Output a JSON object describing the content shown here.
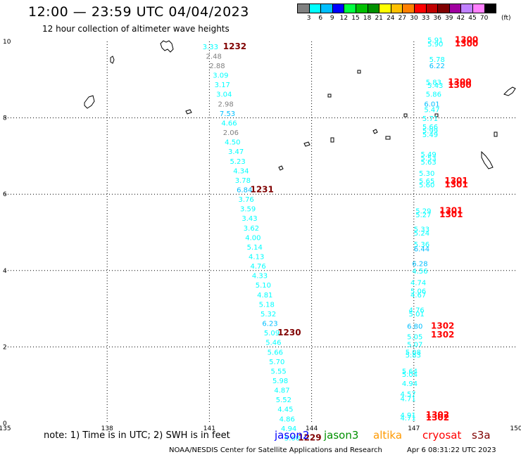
{
  "header": {
    "title": "12:00 — 23:59 UTC 04/04/2023",
    "subtitle": "12 hour collection of altimeter wave heights"
  },
  "colorbar": {
    "colors": [
      "#808080",
      "#00ffff",
      "#00bfff",
      "#0000ff",
      "#00ff40",
      "#00c000",
      "#009000",
      "#ffff00",
      "#ffc000",
      "#ff8000",
      "#ff0000",
      "#c00000",
      "#800000",
      "#a000a0",
      "#c080ff",
      "#ff80ff",
      "#000000"
    ],
    "labels": [
      "3",
      "6",
      "9",
      "12",
      "15",
      "18",
      "21",
      "24",
      "27",
      "30",
      "33",
      "36",
      "39",
      "42",
      "45",
      "70"
    ],
    "unit": "(ft)"
  },
  "axes": {
    "x_ticks": [
      "135",
      "138",
      "141",
      "144",
      "147",
      "150"
    ],
    "y_ticks": [
      "0",
      "2",
      "4",
      "6",
      "8",
      "10"
    ]
  },
  "tracks": {
    "left_labels": [
      {
        "text": "3.33",
        "lon": 140.8,
        "lat": 9.8,
        "color": "#00ffff"
      },
      {
        "text": "2.48",
        "lon": 140.9,
        "lat": 9.55,
        "color": "#808080"
      },
      {
        "text": "2.88",
        "lon": 141.0,
        "lat": 9.3,
        "color": "#808080"
      },
      {
        "text": "3.09",
        "lon": 141.1,
        "lat": 9.05,
        "color": "#00ffff"
      },
      {
        "text": "3.17",
        "lon": 141.15,
        "lat": 8.8,
        "color": "#00ffff"
      },
      {
        "text": "3.04",
        "lon": 141.2,
        "lat": 8.55,
        "color": "#00ffff"
      },
      {
        "text": "2.98",
        "lon": 141.25,
        "lat": 8.3,
        "color": "#808080"
      },
      {
        "text": "7.53",
        "lon": 141.3,
        "lat": 8.05,
        "color": "#00bfff"
      },
      {
        "text": "4.66",
        "lon": 141.35,
        "lat": 7.8,
        "color": "#00ffff"
      },
      {
        "text": "2.06",
        "lon": 141.4,
        "lat": 7.55,
        "color": "#808080"
      },
      {
        "text": "4.50",
        "lon": 141.45,
        "lat": 7.3,
        "color": "#00ffff"
      },
      {
        "text": "3.47",
        "lon": 141.55,
        "lat": 7.05,
        "color": "#00ffff"
      },
      {
        "text": "5.23",
        "lon": 141.6,
        "lat": 6.8,
        "color": "#00ffff"
      },
      {
        "text": "4.34",
        "lon": 141.7,
        "lat": 6.55,
        "color": "#00ffff"
      },
      {
        "text": "3.78",
        "lon": 141.75,
        "lat": 6.3,
        "color": "#00ffff"
      },
      {
        "text": "6.84",
        "lon": 141.8,
        "lat": 6.05,
        "color": "#00bfff"
      },
      {
        "text": "3.76",
        "lon": 141.85,
        "lat": 5.8,
        "color": "#00ffff"
      },
      {
        "text": "3.59",
        "lon": 141.9,
        "lat": 5.55,
        "color": "#00ffff"
      },
      {
        "text": "3.43",
        "lon": 141.95,
        "lat": 5.3,
        "color": "#00ffff"
      },
      {
        "text": "3.62",
        "lon": 142.0,
        "lat": 5.05,
        "color": "#00ffff"
      },
      {
        "text": "4.00",
        "lon": 142.05,
        "lat": 4.8,
        "color": "#00ffff"
      },
      {
        "text": "5.14",
        "lon": 142.1,
        "lat": 4.55,
        "color": "#00ffff"
      },
      {
        "text": "4.13",
        "lon": 142.15,
        "lat": 4.3,
        "color": "#00ffff"
      },
      {
        "text": "4.76",
        "lon": 142.2,
        "lat": 4.05,
        "color": "#00ffff"
      },
      {
        "text": "4.33",
        "lon": 142.25,
        "lat": 3.8,
        "color": "#00ffff"
      },
      {
        "text": "5.10",
        "lon": 142.35,
        "lat": 3.55,
        "color": "#00ffff"
      },
      {
        "text": "4.81",
        "lon": 142.4,
        "lat": 3.3,
        "color": "#00ffff"
      },
      {
        "text": "5.18",
        "lon": 142.45,
        "lat": 3.05,
        "color": "#00ffff"
      },
      {
        "text": "5.32",
        "lon": 142.5,
        "lat": 2.8,
        "color": "#00ffff"
      },
      {
        "text": "6.23",
        "lon": 142.55,
        "lat": 2.55,
        "color": "#00bfff"
      },
      {
        "text": "5.09",
        "lon": 142.6,
        "lat": 2.3,
        "color": "#00ffff"
      },
      {
        "text": "5.46",
        "lon": 142.65,
        "lat": 2.05,
        "color": "#00ffff"
      },
      {
        "text": "5.66",
        "lon": 142.7,
        "lat": 1.8,
        "color": "#00ffff"
      },
      {
        "text": "5.70",
        "lon": 142.75,
        "lat": 1.55,
        "color": "#00ffff"
      },
      {
        "text": "5.55",
        "lon": 142.8,
        "lat": 1.3,
        "color": "#00ffff"
      },
      {
        "text": "5.98",
        "lon": 142.85,
        "lat": 1.05,
        "color": "#00ffff"
      },
      {
        "text": "4.87",
        "lon": 142.9,
        "lat": 0.8,
        "color": "#00ffff"
      },
      {
        "text": "5.52",
        "lon": 142.95,
        "lat": 0.55,
        "color": "#00ffff"
      },
      {
        "text": "4.45",
        "lon": 143.0,
        "lat": 0.3,
        "color": "#00ffff"
      },
      {
        "text": "4.86",
        "lon": 143.05,
        "lat": 0.05,
        "color": "#00ffff"
      },
      {
        "text": "4.94",
        "lon": 143.1,
        "lat": -0.2,
        "color": "#00ffff"
      },
      {
        "text": "5.00",
        "lon": 143.2,
        "lat": -0.45,
        "color": "#00ffff"
      }
    ],
    "right_labels": [
      {
        "text": "5.91",
        "lon": 147.4,
        "lat": 9.97,
        "color": "#00ffff"
      },
      {
        "text": "5.90",
        "lon": 147.4,
        "lat": 9.87,
        "color": "#00ffff"
      },
      {
        "text": "5.78",
        "lon": 147.45,
        "lat": 9.47,
        "color": "#00ffff"
      },
      {
        "text": "6.22",
        "lon": 147.45,
        "lat": 9.3,
        "color": "#00bfff"
      },
      {
        "text": "5.83",
        "lon": 147.35,
        "lat": 8.87,
        "color": "#00ffff"
      },
      {
        "text": "5.43",
        "lon": 147.4,
        "lat": 8.78,
        "color": "#00ffff"
      },
      {
        "text": "5.86",
        "lon": 147.35,
        "lat": 8.55,
        "color": "#00ffff"
      },
      {
        "text": "6.01",
        "lon": 147.3,
        "lat": 8.3,
        "color": "#00bfff"
      },
      {
        "text": "5.47",
        "lon": 147.3,
        "lat": 8.15,
        "color": "#00ffff"
      },
      {
        "text": "5.71",
        "lon": 147.25,
        "lat": 7.92,
        "color": "#00ffff"
      },
      {
        "text": "5.66",
        "lon": 147.25,
        "lat": 7.7,
        "color": "#00ffff"
      },
      {
        "text": "5.99",
        "lon": 147.25,
        "lat": 7.6,
        "color": "#00ffff"
      },
      {
        "text": "5.49",
        "lon": 147.25,
        "lat": 7.5,
        "color": "#00ffff"
      },
      {
        "text": "5.49",
        "lon": 147.2,
        "lat": 6.98,
        "color": "#00ffff"
      },
      {
        "text": "5.53",
        "lon": 147.2,
        "lat": 6.88,
        "color": "#00ffff"
      },
      {
        "text": "5.63",
        "lon": 147.2,
        "lat": 6.78,
        "color": "#00ffff"
      },
      {
        "text": "5.30",
        "lon": 147.15,
        "lat": 6.48,
        "color": "#00ffff"
      },
      {
        "text": "5.65",
        "lon": 147.15,
        "lat": 6.28,
        "color": "#00ffff"
      },
      {
        "text": "5.60",
        "lon": 147.15,
        "lat": 6.18,
        "color": "#00ffff"
      },
      {
        "text": "5.29",
        "lon": 147.05,
        "lat": 5.5,
        "color": "#00ffff"
      },
      {
        "text": "5.27",
        "lon": 147.05,
        "lat": 5.4,
        "color": "#00ffff"
      },
      {
        "text": "5.33",
        "lon": 147.0,
        "lat": 5.02,
        "color": "#00ffff"
      },
      {
        "text": "5.24",
        "lon": 147.0,
        "lat": 4.92,
        "color": "#00ffff"
      },
      {
        "text": "5.36",
        "lon": 147.0,
        "lat": 4.62,
        "color": "#00ffff"
      },
      {
        "text": "6.44",
        "lon": 147.0,
        "lat": 4.5,
        "color": "#00bfff"
      },
      {
        "text": "6.28",
        "lon": 146.95,
        "lat": 4.12,
        "color": "#00bfff"
      },
      {
        "text": "4.56",
        "lon": 146.95,
        "lat": 3.92,
        "color": "#00ffff"
      },
      {
        "text": "4.74",
        "lon": 146.9,
        "lat": 3.62,
        "color": "#00ffff"
      },
      {
        "text": "5.06",
        "lon": 146.9,
        "lat": 3.4,
        "color": "#00ffff"
      },
      {
        "text": "4.67",
        "lon": 146.9,
        "lat": 3.3,
        "color": "#00ffff"
      },
      {
        "text": "4.76",
        "lon": 146.85,
        "lat": 2.9,
        "color": "#00ffff"
      },
      {
        "text": "5.01",
        "lon": 146.85,
        "lat": 2.8,
        "color": "#00ffff"
      },
      {
        "text": "6.80",
        "lon": 146.8,
        "lat": 2.48,
        "color": "#00bfff"
      },
      {
        "text": "5.05",
        "lon": 146.8,
        "lat": 2.2,
        "color": "#00ffff"
      },
      {
        "text": "5.07",
        "lon": 146.8,
        "lat": 2.0,
        "color": "#00ffff"
      },
      {
        "text": "5.08",
        "lon": 146.75,
        "lat": 1.8,
        "color": "#00ffff"
      },
      {
        "text": "5.83",
        "lon": 146.75,
        "lat": 1.72,
        "color": "#00ffff"
      },
      {
        "text": "5.64",
        "lon": 146.65,
        "lat": 1.3,
        "color": "#00ffff"
      },
      {
        "text": "5.04",
        "lon": 146.65,
        "lat": 1.22,
        "color": "#00ffff"
      },
      {
        "text": "4.94",
        "lon": 146.65,
        "lat": 0.98,
        "color": "#00ffff"
      },
      {
        "text": "4.57",
        "lon": 146.6,
        "lat": 0.7,
        "color": "#00ffff"
      },
      {
        "text": "4.71",
        "lon": 146.6,
        "lat": 0.58,
        "color": "#00ffff"
      },
      {
        "text": "4.91",
        "lon": 146.6,
        "lat": 0.15,
        "color": "#00ffff"
      },
      {
        "text": "4.71",
        "lon": 146.6,
        "lat": 0.07,
        "color": "#00ffff"
      }
    ],
    "time_labels": [
      {
        "text": "1232",
        "lon": 141.4,
        "lat": 9.8,
        "color": "#800000"
      },
      {
        "text": "1231",
        "lon": 142.2,
        "lat": 6.05,
        "color": "#800000"
      },
      {
        "text": "1230",
        "lon": 143.0,
        "lat": 2.3,
        "color": "#800000"
      },
      {
        "text": "1229",
        "lon": 143.6,
        "lat": -0.45,
        "color": "#800000"
      },
      {
        "text": "1300",
        "lon": 148.2,
        "lat": 9.97,
        "color": "#ff0000"
      },
      {
        "text": "1300",
        "lon": 148.2,
        "lat": 9.87,
        "color": "#ff0000"
      },
      {
        "text": "1300",
        "lon": 148.0,
        "lat": 8.87,
        "color": "#ff0000"
      },
      {
        "text": "1300",
        "lon": 148.0,
        "lat": 8.78,
        "color": "#ff0000"
      },
      {
        "text": "1301",
        "lon": 147.9,
        "lat": 6.28,
        "color": "#ff0000"
      },
      {
        "text": "1301",
        "lon": 147.9,
        "lat": 6.18,
        "color": "#ff0000"
      },
      {
        "text": "1301",
        "lon": 147.75,
        "lat": 5.5,
        "color": "#ff0000"
      },
      {
        "text": "1301",
        "lon": 147.75,
        "lat": 5.4,
        "color": "#ff0000"
      },
      {
        "text": "1302",
        "lon": 147.5,
        "lat": 2.48,
        "color": "#ff0000"
      },
      {
        "text": "1302",
        "lon": 147.5,
        "lat": 2.25,
        "color": "#ff0000"
      },
      {
        "text": "1302",
        "lon": 147.35,
        "lat": 0.15,
        "color": "#ff0000"
      },
      {
        "text": "1302",
        "lon": 147.35,
        "lat": 0.07,
        "color": "#ff0000"
      }
    ]
  },
  "legend": {
    "note": "note: 1) Time is in UTC; 2) SWH is in feet",
    "satellites": [
      {
        "name": "jason2",
        "color": "#0000ff"
      },
      {
        "name": "jason3",
        "color": "#009000"
      },
      {
        "name": "altika",
        "color": "#ff9900"
      },
      {
        "name": "cryosat",
        "color": "#ff0000"
      },
      {
        "name": "s3a",
        "color": "#800000"
      }
    ]
  },
  "footer": {
    "credit": "NOAA/NESDIS Center for Satellite Applications and Research",
    "generated": "Apr  6 08:31:22 UTC 2023"
  }
}
